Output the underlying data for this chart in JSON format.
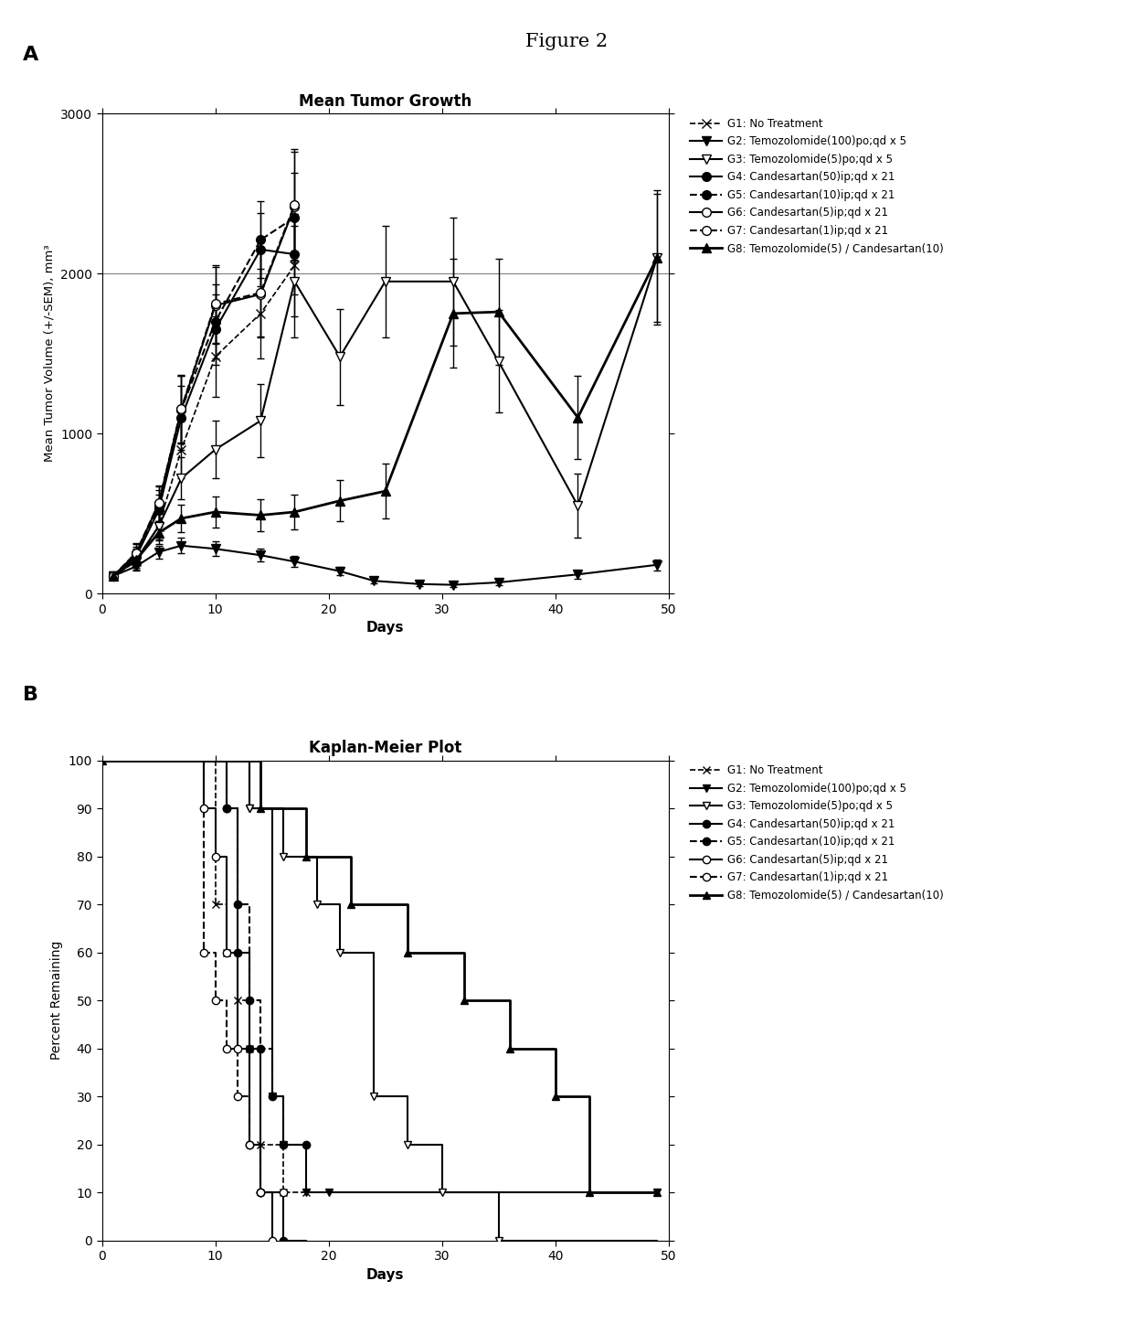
{
  "figure_title": "Figure 2",
  "panel_A": {
    "title": "Mean Tumor Growth",
    "xlabel": "Days",
    "ylabel": "Mean Tumor Volume (+/-SEM), mm³",
    "xlim": [
      0,
      50
    ],
    "ylim": [
      0,
      3000
    ],
    "yticks": [
      0,
      1000,
      2000,
      3000
    ],
    "xticks": [
      0,
      10,
      20,
      30,
      40,
      50
    ],
    "hline": 2000,
    "groups": {
      "G1": {
        "label": "G1: No Treatment",
        "x": [
          1,
          3,
          5,
          7,
          10,
          14,
          17
        ],
        "y": [
          110,
          200,
          420,
          900,
          1480,
          1750,
          2050
        ],
        "yerr": [
          15,
          50,
          90,
          180,
          250,
          280,
          320
        ],
        "linestyle": "dashed",
        "marker": "x",
        "markerfacecolor": "black",
        "color": "black",
        "linewidth": 1.2,
        "markersize": 7
      },
      "G2": {
        "label": "G2: Temozolomide(100)po;qd x 5",
        "x": [
          1,
          3,
          5,
          7,
          10,
          14,
          17,
          21,
          24,
          28,
          31,
          35,
          42,
          49
        ],
        "y": [
          110,
          170,
          260,
          300,
          280,
          240,
          200,
          140,
          80,
          60,
          55,
          70,
          120,
          180
        ],
        "yerr": [
          15,
          25,
          40,
          50,
          45,
          40,
          35,
          25,
          15,
          12,
          12,
          15,
          25,
          35
        ],
        "linestyle": "solid",
        "marker": "v",
        "markerfacecolor": "black",
        "color": "black",
        "linewidth": 1.5,
        "markersize": 7
      },
      "G3": {
        "label": "G3: Temozolomide(5)po;qd x 5",
        "x": [
          1,
          3,
          5,
          7,
          10,
          14,
          17,
          21,
          25,
          31,
          35,
          42,
          49
        ],
        "y": [
          110,
          210,
          420,
          720,
          900,
          1080,
          1950,
          1480,
          1950,
          1950,
          1450,
          550,
          2100
        ],
        "yerr": [
          15,
          50,
          80,
          130,
          180,
          230,
          350,
          300,
          350,
          400,
          320,
          200,
          420
        ],
        "linestyle": "solid",
        "marker": "v",
        "markerfacecolor": "white",
        "color": "black",
        "linewidth": 1.5,
        "markersize": 7
      },
      "G4": {
        "label": "G4: Candesartan(50)ip;qd x 21",
        "x": [
          1,
          3,
          5,
          7,
          10,
          14,
          17
        ],
        "y": [
          110,
          230,
          520,
          1100,
          1650,
          2150,
          2120
        ],
        "yerr": [
          15,
          50,
          100,
          200,
          220,
          230,
          250
        ],
        "linestyle": "solid",
        "marker": "o",
        "markerfacecolor": "black",
        "color": "black",
        "linewidth": 1.5,
        "markersize": 7
      },
      "G5": {
        "label": "G5: Candesartan(10)ip;qd x 21",
        "x": [
          1,
          3,
          5,
          7,
          10,
          14,
          17
        ],
        "y": [
          110,
          240,
          540,
          1150,
          1700,
          2210,
          2350
        ],
        "yerr": [
          15,
          55,
          105,
          210,
          230,
          240,
          280
        ],
        "linestyle": "dashed",
        "marker": "o",
        "markerfacecolor": "black",
        "color": "black",
        "linewidth": 1.5,
        "markersize": 7
      },
      "G6": {
        "label": "G6: Candesartan(5)ip;qd x 21",
        "x": [
          1,
          3,
          5,
          7,
          10,
          14,
          17
        ],
        "y": [
          110,
          250,
          560,
          1150,
          1800,
          1870,
          2420
        ],
        "yerr": [
          15,
          58,
          108,
          210,
          240,
          270,
          340
        ],
        "linestyle": "solid",
        "marker": "o",
        "markerfacecolor": "white",
        "color": "black",
        "linewidth": 1.5,
        "markersize": 7
      },
      "G7": {
        "label": "G7: Candesartan(1)ip;qd x 21",
        "x": [
          1,
          3,
          5,
          7,
          10,
          14,
          17
        ],
        "y": [
          110,
          255,
          565,
          1155,
          1810,
          1880,
          2430
        ],
        "yerr": [
          15,
          60,
          110,
          212,
          242,
          275,
          345
        ],
        "linestyle": "dashed",
        "marker": "o",
        "markerfacecolor": "white",
        "color": "black",
        "linewidth": 1.5,
        "markersize": 7
      },
      "G8": {
        "label": "G8: Temozolomide(5) / Candesartan(10)",
        "x": [
          1,
          3,
          5,
          7,
          10,
          14,
          17,
          21,
          25,
          31,
          35,
          42,
          49
        ],
        "y": [
          110,
          210,
          380,
          470,
          510,
          490,
          510,
          580,
          640,
          1750,
          1760,
          1100,
          2100
        ],
        "yerr": [
          15,
          40,
          70,
          85,
          95,
          100,
          110,
          130,
          170,
          340,
          330,
          260,
          400
        ],
        "linestyle": "solid",
        "marker": "^",
        "markerfacecolor": "black",
        "color": "black",
        "linewidth": 2.0,
        "markersize": 7
      }
    }
  },
  "panel_B": {
    "title": "Kaplan-Meier Plot",
    "xlabel": "Days",
    "ylabel": "Percent Remaining",
    "xlim": [
      0,
      50
    ],
    "ylim": [
      0,
      100
    ],
    "yticks": [
      0,
      10,
      20,
      30,
      40,
      50,
      60,
      70,
      80,
      90,
      100
    ],
    "xticks": [
      0,
      10,
      20,
      30,
      40,
      50
    ],
    "groups": {
      "G1": {
        "label": "G1: No Treatment",
        "x": [
          0,
          10,
          10,
          11,
          11,
          12,
          12,
          13,
          13,
          14,
          14,
          16,
          16,
          18,
          18
        ],
        "y": [
          100,
          100,
          70,
          70,
          60,
          60,
          50,
          50,
          40,
          40,
          20,
          20,
          10,
          10,
          10
        ],
        "mx": [
          10,
          11,
          12,
          13,
          14,
          16,
          18
        ],
        "my": [
          70,
          60,
          50,
          40,
          20,
          10,
          10
        ],
        "linestyle": "dashed",
        "marker": "x",
        "color": "black",
        "linewidth": 1.2,
        "markersize": 6,
        "markerfacecolor": "black"
      },
      "G2": {
        "label": "G2: Temozolomide(100)po;qd x 5",
        "x": [
          0,
          13,
          13,
          15,
          15,
          16,
          16,
          18,
          18,
          20,
          20,
          49,
          49
        ],
        "y": [
          100,
          100,
          90,
          90,
          30,
          30,
          20,
          20,
          10,
          10,
          10,
          10,
          10
        ],
        "mx": [
          13,
          15,
          16,
          18,
          20,
          49
        ],
        "my": [
          90,
          30,
          20,
          10,
          10,
          10
        ],
        "linestyle": "solid",
        "marker": "v",
        "color": "black",
        "linewidth": 1.5,
        "markersize": 6,
        "markerfacecolor": "black"
      },
      "G3": {
        "label": "G3: Temozolomide(5)po;qd x 5",
        "x": [
          0,
          13,
          13,
          16,
          16,
          19,
          19,
          21,
          21,
          24,
          24,
          27,
          27,
          30,
          30,
          35,
          35,
          49
        ],
        "y": [
          100,
          100,
          90,
          90,
          80,
          80,
          70,
          70,
          60,
          60,
          30,
          30,
          20,
          20,
          10,
          10,
          0,
          0
        ],
        "mx": [
          13,
          16,
          19,
          21,
          24,
          27,
          30,
          35
        ],
        "my": [
          90,
          80,
          70,
          60,
          30,
          20,
          10,
          0
        ],
        "linestyle": "solid",
        "marker": "v",
        "color": "black",
        "linewidth": 1.5,
        "markersize": 6,
        "markerfacecolor": "white"
      },
      "G4": {
        "label": "G4: Candesartan(50)ip;qd x 21",
        "x": [
          0,
          11,
          11,
          12,
          12,
          13,
          13,
          14,
          14,
          16,
          16,
          18,
          18
        ],
        "y": [
          100,
          100,
          90,
          90,
          60,
          60,
          40,
          40,
          10,
          10,
          0,
          0,
          0
        ],
        "mx": [
          11,
          12,
          13,
          14,
          16
        ],
        "my": [
          90,
          60,
          40,
          10,
          0
        ],
        "linestyle": "solid",
        "marker": "o",
        "color": "black",
        "linewidth": 1.5,
        "markersize": 6,
        "markerfacecolor": "black"
      },
      "G5": {
        "label": "G5: Candesartan(10)ip;qd x 21",
        "x": [
          0,
          11,
          11,
          12,
          12,
          13,
          13,
          14,
          14,
          15,
          15,
          16,
          16,
          18,
          18
        ],
        "y": [
          100,
          100,
          90,
          90,
          70,
          70,
          50,
          50,
          40,
          40,
          30,
          30,
          20,
          20,
          20
        ],
        "mx": [
          11,
          12,
          13,
          14,
          15,
          16,
          18
        ],
        "my": [
          90,
          70,
          50,
          40,
          30,
          20,
          20
        ],
        "linestyle": "dashed",
        "marker": "o",
        "color": "black",
        "linewidth": 1.5,
        "markersize": 6,
        "markerfacecolor": "black"
      },
      "G6": {
        "label": "G6: Candesartan(5)ip;qd x 21",
        "x": [
          0,
          9,
          9,
          10,
          10,
          11,
          11,
          12,
          12,
          13,
          13,
          14,
          14,
          15,
          15
        ],
        "y": [
          100,
          100,
          90,
          90,
          80,
          80,
          60,
          60,
          40,
          40,
          20,
          20,
          10,
          10,
          0
        ],
        "mx": [
          9,
          10,
          11,
          12,
          13,
          14,
          15
        ],
        "my": [
          90,
          80,
          60,
          40,
          20,
          10,
          0
        ],
        "linestyle": "solid",
        "marker": "o",
        "color": "black",
        "linewidth": 1.5,
        "markersize": 6,
        "markerfacecolor": "white"
      },
      "G7": {
        "label": "G7: Candesartan(1)ip;qd x 21",
        "x": [
          0,
          9,
          9,
          10,
          10,
          11,
          11,
          12,
          12,
          13,
          13,
          14,
          14,
          16,
          16
        ],
        "y": [
          100,
          100,
          60,
          60,
          50,
          50,
          40,
          40,
          30,
          30,
          20,
          20,
          10,
          10,
          10
        ],
        "mx": [
          9,
          10,
          11,
          12,
          13,
          14,
          16
        ],
        "my": [
          60,
          50,
          40,
          30,
          20,
          10,
          10
        ],
        "linestyle": "dashed",
        "marker": "o",
        "color": "black",
        "linewidth": 1.5,
        "markersize": 6,
        "markerfacecolor": "white"
      },
      "G8": {
        "label": "G8: Temozolomide(5) / Candesartan(10)",
        "x": [
          0,
          14,
          14,
          18,
          18,
          22,
          22,
          27,
          27,
          32,
          32,
          36,
          36,
          40,
          40,
          43,
          43,
          49,
          49
        ],
        "y": [
          100,
          100,
          90,
          90,
          80,
          80,
          70,
          70,
          60,
          60,
          50,
          50,
          40,
          40,
          30,
          30,
          10,
          10,
          10
        ],
        "mx": [
          14,
          18,
          22,
          27,
          32,
          36,
          40,
          43,
          49
        ],
        "my": [
          90,
          80,
          70,
          60,
          50,
          40,
          30,
          10,
          10
        ],
        "linestyle": "solid",
        "marker": "^",
        "color": "black",
        "linewidth": 2.0,
        "markersize": 6,
        "markerfacecolor": "black"
      }
    }
  }
}
